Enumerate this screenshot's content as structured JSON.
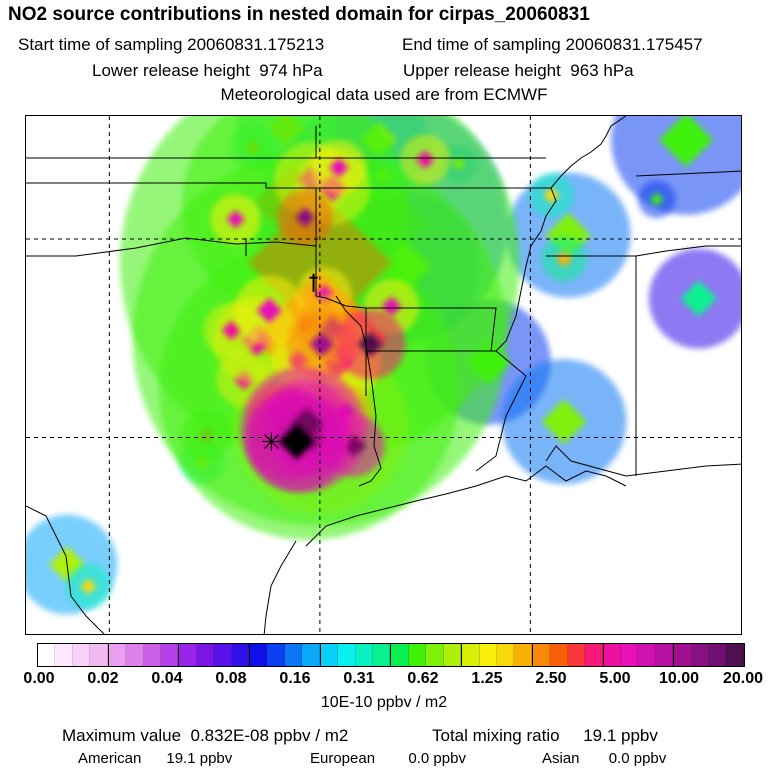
{
  "header": {
    "title": "NO2 source contributions in nested domain for cirpas_20060831",
    "start_label": "Start time of sampling",
    "start_value": "20060831.175213",
    "end_label": "End time of sampling",
    "end_value": "20060831.175457",
    "lower_label": "Lower release height",
    "lower_value": "974 hPa",
    "upper_label": "Upper release height",
    "upper_value": "963 hPa",
    "met": "Meteorological data used are from ECMWF"
  },
  "colorbar": {
    "colors": [
      "#ffffff",
      "#fde8fd",
      "#f8d2f8",
      "#f2baf2",
      "#e9a0ee",
      "#dd82ea",
      "#cc60e8",
      "#b640e8",
      "#9a25e8",
      "#7a15e8",
      "#5a10e8",
      "#3010e8",
      "#1010e8",
      "#0a40f0",
      "#0a78f5",
      "#0aa8f8",
      "#0ad0f8",
      "#08f0f0",
      "#08f0c0",
      "#08f090",
      "#08f050",
      "#40f008",
      "#80f008",
      "#b0f008",
      "#d8f008",
      "#f8f008",
      "#f8d808",
      "#f8b008",
      "#f88808",
      "#f86008",
      "#f83838",
      "#f81878",
      "#f010a0",
      "#e810b8",
      "#d010b0",
      "#b810a0",
      "#a01090",
      "#881080",
      "#701070",
      "#501050"
    ],
    "ticks": [
      "0.00",
      "0.02",
      "0.04",
      "0.08",
      "0.16",
      "0.31",
      "0.62",
      "1.25",
      "2.50",
      "5.00",
      "10.00",
      "20.00"
    ],
    "unit": "10E-10 ppbv / m2"
  },
  "footer": {
    "max_label": "Maximum value",
    "max_value": "0.832E-08 ppbv / m2",
    "total_label": "Total mixing ratio",
    "total_value": "19.1 ppbv",
    "american_label": "American",
    "american_value": "19.1 ppbv",
    "european_label": "European",
    "european_value": "0.0 ppbv",
    "asian_label": "Asian",
    "asian_value": "0.0 ppbv"
  },
  "plumes": [
    {
      "lon": -94.98,
      "lat": 30.28,
      "v": 2.0,
      "r": 70
    },
    {
      "lon": -95.25,
      "lat": 31.2,
      "v": 1.6,
      "r": 120
    },
    {
      "lon": -95.0,
      "lat": 32.5,
      "v": 1.7,
      "r": 150
    },
    {
      "lon": -95.0,
      "lat": 34.4,
      "v": 1.6,
      "r": 160
    },
    {
      "lon": -95.6,
      "lat": 35.9,
      "v": 1.5,
      "r": 90
    },
    {
      "lon": -93.5,
      "lat": 35.4,
      "v": 0.5,
      "r": 100
    },
    {
      "lon": -93.0,
      "lat": 34.3,
      "v": 0.5,
      "r": 60
    },
    {
      "lon": -91.0,
      "lat": 31.9,
      "v": 0.4,
      "r": 50
    },
    {
      "lon": -89.1,
      "lat": 35.1,
      "v": 0.5,
      "r": 50
    },
    {
      "lon": -86.3,
      "lat": 37.5,
      "v": 0.4,
      "r": 60
    },
    {
      "lon": -86.0,
      "lat": 33.5,
      "v": 0.3,
      "r": 40
    },
    {
      "lon": -89.2,
      "lat": 30.4,
      "v": 0.5,
      "r": 50
    },
    {
      "lon": -101.0,
      "lat": 26.8,
      "v": 0.6,
      "r": 40
    },
    {
      "lon": -95.8,
      "lat": 37.8,
      "v": 0.9,
      "r": 40
    },
    {
      "lon": -93.6,
      "lat": 37.5,
      "v": 0.6,
      "r": 40
    },
    {
      "lon": -95.2,
      "lat": 36.5,
      "v": 2.5,
      "r": 30
    },
    {
      "lon": -94.7,
      "lat": 36.3,
      "v": 2.5,
      "r": 30
    },
    {
      "lon": -93.3,
      "lat": 33.3,
      "v": 3.1,
      "r": 22
    },
    {
      "lon": -95.35,
      "lat": 35.55,
      "v": 7.0,
      "r": 22
    },
    {
      "lon": -94.55,
      "lat": 36.8,
      "v": 3.5,
      "r": 22
    },
    {
      "lon": -92.5,
      "lat": 37.0,
      "v": 2.8,
      "r": 20
    },
    {
      "lon": -97.0,
      "lat": 35.5,
      "v": 3.5,
      "r": 20
    },
    {
      "lon": -96.2,
      "lat": 33.2,
      "v": 3.2,
      "r": 28
    },
    {
      "lon": -94.9,
      "lat": 33.6,
      "v": 3.5,
      "r": 22
    },
    {
      "lon": -96.5,
      "lat": 32.45,
      "v": 2.7,
      "r": 35
    },
    {
      "lon": -94.95,
      "lat": 32.35,
      "v": 5.0,
      "r": 28
    },
    {
      "lon": -95.5,
      "lat": 31.95,
      "v": 3.5,
      "r": 22
    },
    {
      "lon": -94.6,
      "lat": 31.9,
      "v": 3.0,
      "r": 35
    },
    {
      "lon": -94.7,
      "lat": 32.75,
      "v": 4.5,
      "r": 28
    },
    {
      "lon": -93.8,
      "lat": 32.35,
      "v": 9.0,
      "r": 28
    },
    {
      "lon": -94.4,
      "lat": 32.1,
      "v": 2.8,
      "r": 28
    },
    {
      "lon": -97.1,
      "lat": 32.7,
      "v": 2.8,
      "r": 22
    },
    {
      "lon": -96.8,
      "lat": 31.45,
      "v": 2.5,
      "r": 22
    },
    {
      "lon": -95.6,
      "lat": 30.9,
      "v": 3.0,
      "r": 22
    },
    {
      "lon": -94.4,
      "lat": 30.65,
      "v": 4.5,
      "r": 22
    },
    {
      "lon": -95.95,
      "lat": 30.55,
      "v": 6.0,
      "r": 25
    },
    {
      "lon": -94.2,
      "lat": 29.8,
      "v": 12.0,
      "r": 25
    },
    {
      "lon": -97.7,
      "lat": 30.05,
      "v": 1.5,
      "r": 20
    },
    {
      "lon": -100.5,
      "lat": 26.25,
      "v": 1.0,
      "r": 18
    },
    {
      "lon": -97.8,
      "lat": 29.4,
      "v": 0.9,
      "r": 18
    },
    {
      "lon": -89.5,
      "lat": 36.1,
      "v": 1.0,
      "r": 18
    },
    {
      "lon": -89.2,
      "lat": 34.5,
      "v": 1.2,
      "r": 18
    },
    {
      "lon": -96.6,
      "lat": 37.3,
      "v": 1.2,
      "r": 18
    },
    {
      "lon": -96.1,
      "lat": 34.3,
      "v": 1.0,
      "r": 18
    },
    {
      "lon": -94.4,
      "lat": 35.2,
      "v": 1.0,
      "r": 18
    },
    {
      "lon": -93.5,
      "lat": 36.6,
      "v": 0.8,
      "r": 18
    },
    {
      "lon": -91.7,
      "lat": 36.9,
      "v": 0.6,
      "r": 15
    },
    {
      "lon": -87.0,
      "lat": 36.0,
      "v": 0.4,
      "r": 15
    },
    {
      "lon": -95.4,
      "lat": 30.2,
      "v": 12.0,
      "r": 50
    },
    {
      "lon": -95.55,
      "lat": 29.9,
      "v": 16.0,
      "r": 40
    },
    {
      "lon": -95.3,
      "lat": 30.35,
      "v": 14.0,
      "r": 35
    },
    {
      "lon": -95.7,
      "lat": 30.05,
      "v": 10.0,
      "r": 35
    },
    {
      "lon": -95.2,
      "lat": 29.95,
      "v": 12.0,
      "r": 30
    }
  ],
  "markers": [
    {
      "type": "star",
      "lon": -96.15,
      "lat": 29.9
    },
    {
      "type": "dagger",
      "lon": -95.15,
      "lat": 33.9
    }
  ]
}
